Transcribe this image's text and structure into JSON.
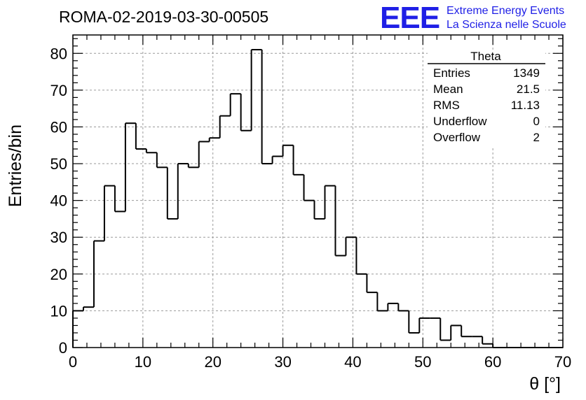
{
  "title": "ROMA-02-2019-03-30-00505",
  "logo": {
    "mark": "EEE",
    "line1": "Extreme Energy Events",
    "line2": "La Scienza nelle Scuole",
    "color": "#1f1fe6"
  },
  "stats": {
    "name": "Theta",
    "rows": [
      {
        "label": "Entries",
        "value": "1349"
      },
      {
        "label": "Mean",
        "value": "21.5"
      },
      {
        "label": "RMS",
        "value": "11.13"
      },
      {
        "label": "Underflow",
        "value": "0"
      },
      {
        "label": "Overflow",
        "value": "2"
      }
    ]
  },
  "chart_data": {
    "type": "bar",
    "style": "step-histogram",
    "xlabel": "θ [°]",
    "ylabel": "Entries/bin",
    "xlim": [
      0,
      70
    ],
    "ylim": [
      0,
      85
    ],
    "grid": true,
    "bin_width": 1.5,
    "bin_start": 0,
    "x_ticks": [
      0,
      10,
      20,
      30,
      40,
      50,
      60,
      70
    ],
    "y_ticks": [
      0,
      10,
      20,
      30,
      40,
      50,
      60,
      70,
      80
    ],
    "values": [
      10,
      11,
      29,
      44,
      37,
      61,
      54,
      53,
      49,
      35,
      50,
      49,
      56,
      57,
      63,
      69,
      59,
      81,
      50,
      52,
      55,
      47,
      40,
      35,
      44,
      25,
      30,
      20,
      15,
      10,
      12,
      10,
      4,
      8,
      8,
      2,
      6,
      3,
      3,
      1,
      0,
      0,
      0,
      0,
      0,
      0,
      0
    ],
    "line_color": "#000000"
  }
}
